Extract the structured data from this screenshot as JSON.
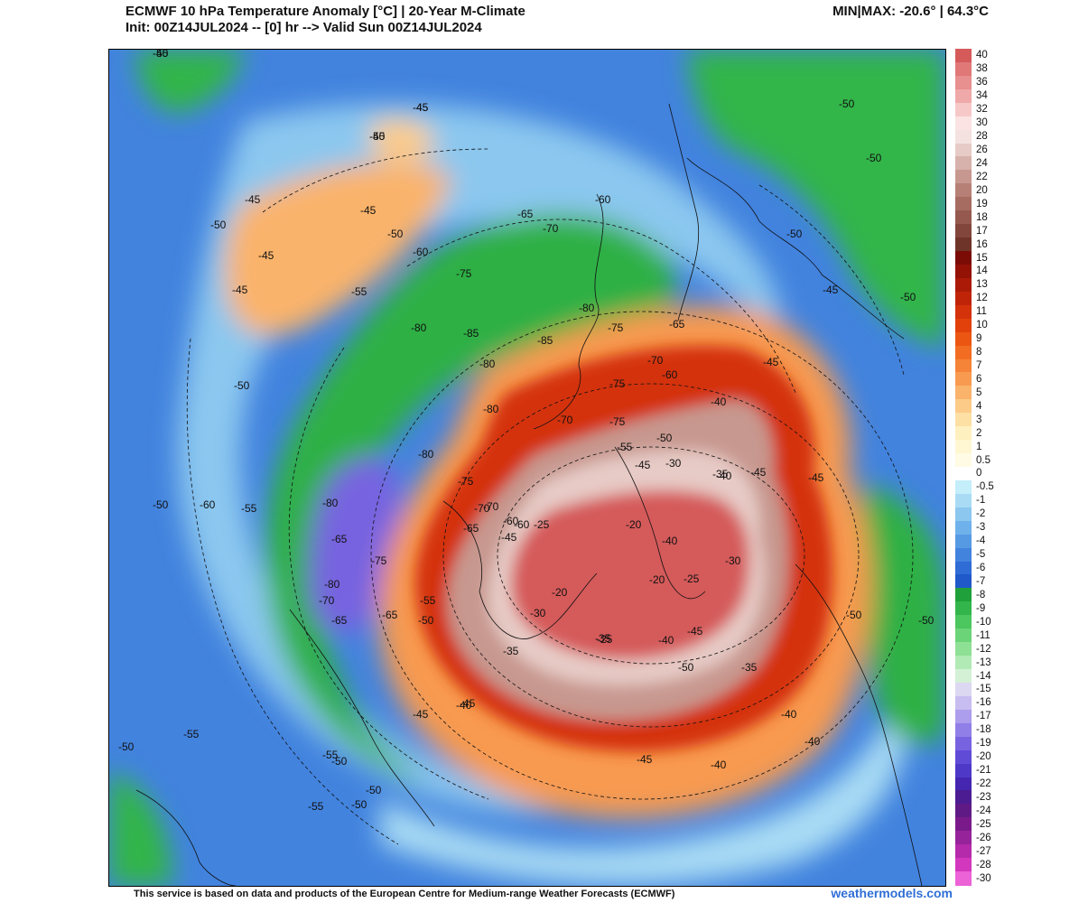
{
  "header": {
    "title_line1": "ECMWF 10 hPa Temperature Anomaly [°C] | 20-Year M-Climate",
    "title_line2": "Init: 00Z14JUL2024 -- [0] hr --> Valid Sun 00Z14JUL2024",
    "minmax": "MIN|MAX: -20.6° | 64.3°C"
  },
  "legend": {
    "ticks": [
      "40",
      "38",
      "36",
      "34",
      "32",
      "30",
      "28",
      "26",
      "24",
      "22",
      "20",
      "19",
      "18",
      "17",
      "16",
      "15",
      "14",
      "13",
      "12",
      "11",
      "10",
      "9",
      "8",
      "7",
      "6",
      "5",
      "4",
      "3",
      "2",
      "1",
      "0.5",
      "0",
      "-0.5",
      "-1",
      "-2",
      "-3",
      "-4",
      "-5",
      "-6",
      "-7",
      "-8",
      "-9",
      "-10",
      "-11",
      "-12",
      "-13",
      "-14",
      "-15",
      "-16",
      "-17",
      "-18",
      "-19",
      "-20",
      "-21",
      "-22",
      "-23",
      "-24",
      "-25",
      "-26",
      "-27",
      "-28",
      "-30"
    ],
    "colors": [
      "#d55a5a",
      "#e07878",
      "#e88f8f",
      "#f0a9a9",
      "#f7c8c8",
      "#fbe3e3",
      "#f3e2df",
      "#e7cbc6",
      "#d7b1ab",
      "#c7988f",
      "#b78076",
      "#a66c61",
      "#95594f",
      "#83463d",
      "#6f3429",
      "#7a0b05",
      "#931105",
      "#aa1a07",
      "#c02408",
      "#d4320a",
      "#e2410c",
      "#ec5613",
      "#f26d22",
      "#f58338",
      "#f89a50",
      "#fab36b",
      "#fccb88",
      "#fde0a4",
      "#fff0c0",
      "#fff7d2",
      "#fffbe4",
      "#ffffff",
      "#c3eefa",
      "#a9dcf4",
      "#8bc7ef",
      "#6fb1ea",
      "#579ae4",
      "#4283de",
      "#2f6cd6",
      "#1f59ca",
      "#20a03b",
      "#32b54a",
      "#4cc65e",
      "#6bd478",
      "#8ee095",
      "#b1eab5",
      "#d4f1d6",
      "#ddd8f2",
      "#c7bdf0",
      "#ac9ded",
      "#917fe8",
      "#7763e0",
      "#5f4bd6",
      "#4e38c7",
      "#4426b0",
      "#4b1c92",
      "#601a86",
      "#7a1a8a",
      "#96239a",
      "#b42aab",
      "#d237bd",
      "#ec62d7"
    ]
  },
  "map": {
    "contour_labels": [
      "-50",
      "-45",
      "-45",
      "-45",
      "-45",
      "-45",
      "-50",
      "-45",
      "-50",
      "-50",
      "-55",
      "-55",
      "-60",
      "-65",
      "-70",
      "-60",
      "-75",
      "-80",
      "-85",
      "-85",
      "-80",
      "-80",
      "-75",
      "-80",
      "-75",
      "-70",
      "-65",
      "-60",
      "-75",
      "-70",
      "-50",
      "-55",
      "-45",
      "-40",
      "-35",
      "-30",
      "-40",
      "-45",
      "-80",
      "-75",
      "-80",
      "-65",
      "-70",
      "-60",
      "-75",
      "-80",
      "-65",
      "-70",
      "-65",
      "-60",
      "-55",
      "-50",
      "-50",
      "-45",
      "-55",
      "-50",
      "-50",
      "-50",
      "-55",
      "-70",
      "-65",
      "-45",
      "-60",
      "-55",
      "-50",
      "-45",
      "-40",
      "-35",
      "-30",
      "-25",
      "-20",
      "-20",
      "-20",
      "-25",
      "-30",
      "-35",
      "-25",
      "-40",
      "-45",
      "-50",
      "-40",
      "-40",
      "-35",
      "-40",
      "-40",
      "-45",
      "-50",
      "-45",
      "-45",
      "-50",
      "-45",
      "-50",
      "-50",
      "-50",
      "-50",
      "-45",
      "-45",
      "-50"
    ],
    "field_colors": {
      "ocean_blue": "#2f6cd6",
      "light_blue": "#8bc7ef",
      "green": "#2fb045",
      "purple": "#7763e0",
      "orange": "#fab36b",
      "red": "#d4320a",
      "brown": "#95594f",
      "pink": "#d55a5a"
    }
  },
  "footer": {
    "text": "This service is based on data and products of the European Centre for Medium-range Weather Forecasts (ECMWF)",
    "site": "weathermodels.com"
  }
}
